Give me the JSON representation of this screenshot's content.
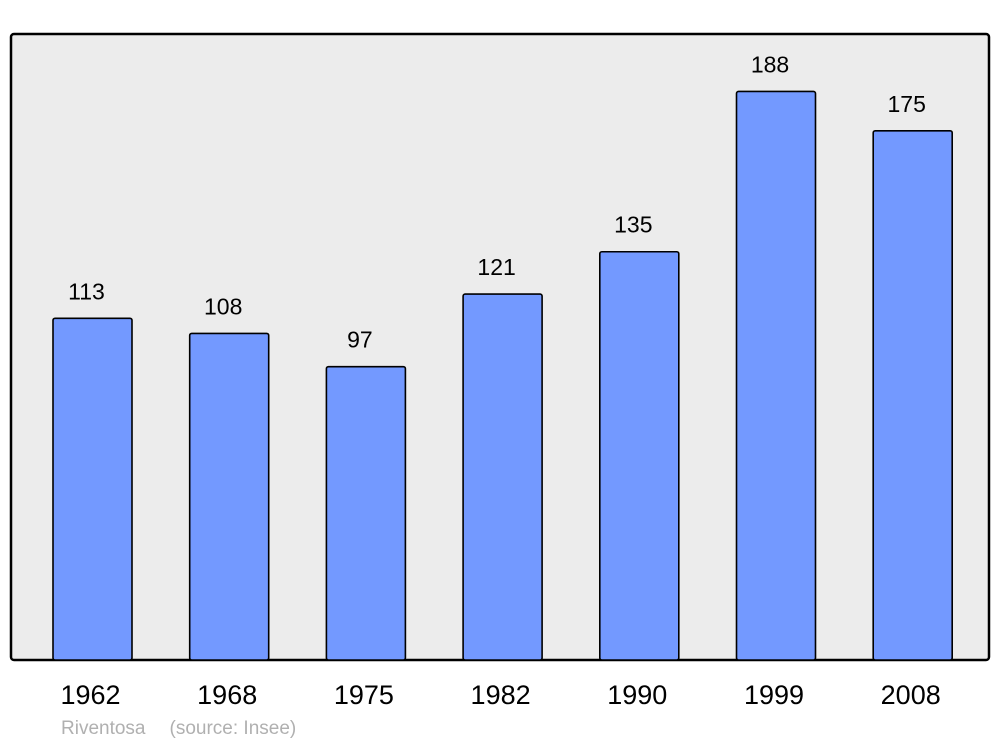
{
  "chart_data": {
    "type": "bar",
    "categories": [
      "1962",
      "1968",
      "1975",
      "1982",
      "1990",
      "1999",
      "2008"
    ],
    "values": [
      113,
      108,
      97,
      121,
      135,
      188,
      175
    ],
    "title": "",
    "xlabel": "",
    "ylabel": "",
    "ylim": [
      0,
      207
    ],
    "grid": false,
    "data_labels": true,
    "colors": {
      "bar": "#7399ff",
      "background": "#ececec",
      "stroke": "#000000"
    }
  },
  "footer": {
    "place": "Riventosa",
    "source": "(source: Insee)"
  }
}
